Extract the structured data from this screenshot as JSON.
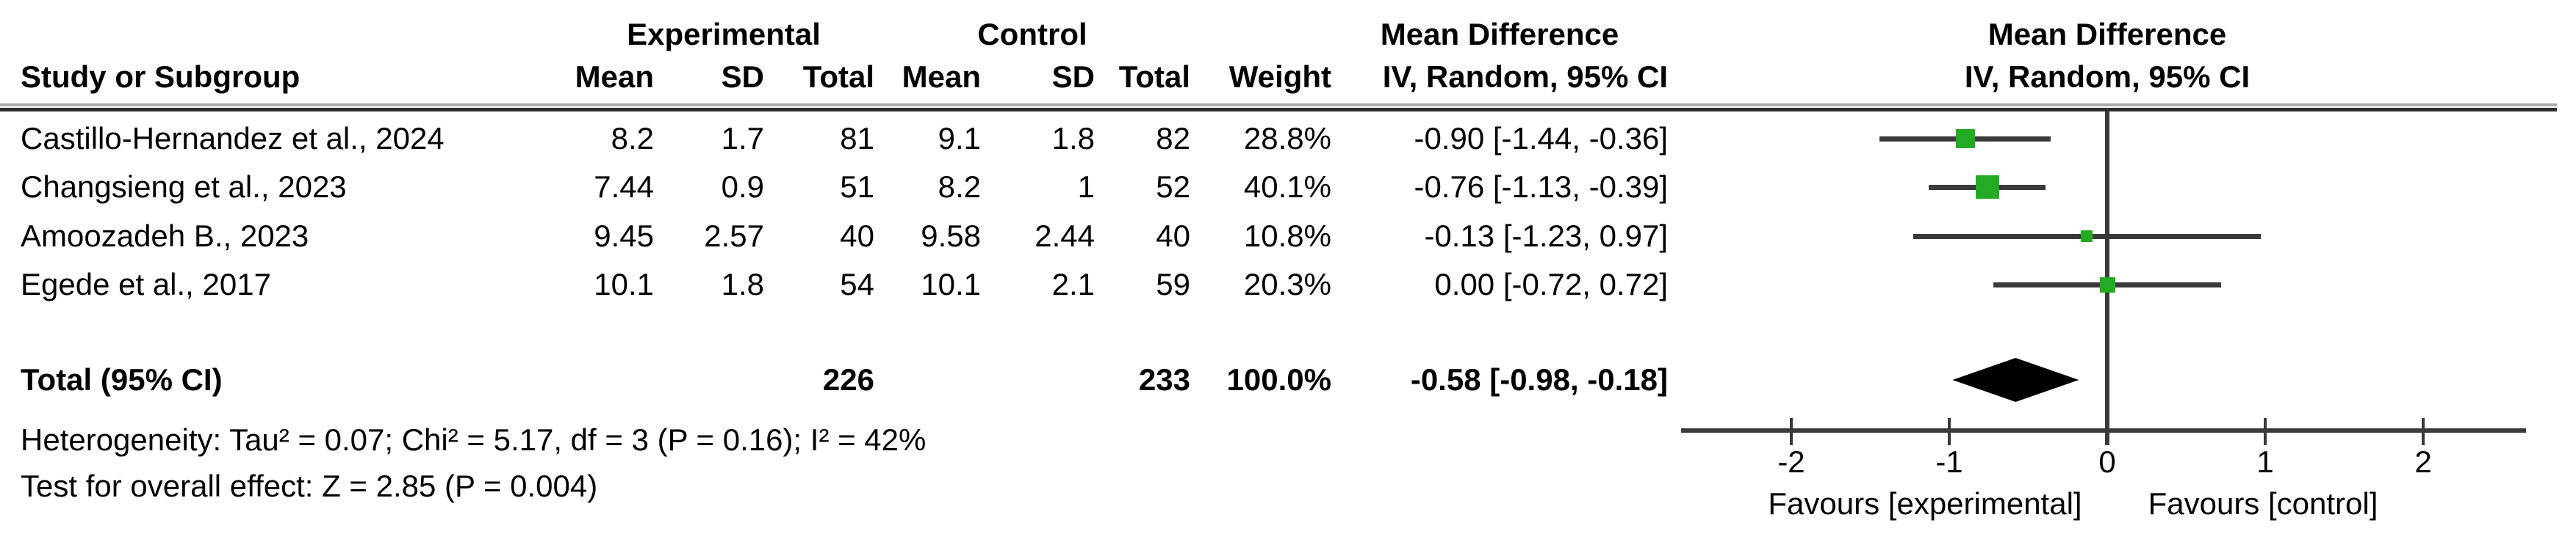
{
  "colors": {
    "marker_green": "#23AC23",
    "ci_line": "#3a3a3a",
    "axis_line": "#3a3a3a",
    "diamond": "#000000",
    "text": "#000000",
    "background": "#ffffff"
  },
  "table": {
    "group_headers": {
      "experimental": "Experimental",
      "control": "Control",
      "mean_difference": "Mean Difference"
    },
    "column_headers": {
      "study": "Study or Subgroup",
      "mean": "Mean",
      "sd": "SD",
      "total": "Total",
      "weight": "Weight",
      "iv": "IV, Random, 95% CI"
    }
  },
  "plot": {
    "header_line1": "Mean Difference",
    "header_line2": "IV, Random, 95% CI",
    "favours_left": "Favours [experimental]",
    "favours_right": "Favours [control]"
  },
  "chart_data": {
    "type": "forest",
    "effect_measure": "Mean Difference",
    "model": "IV, Random, 95% CI",
    "axis": {
      "min": -2,
      "max": 2,
      "tick_labels": [
        "-2",
        "-1",
        "0",
        "1",
        "2"
      ],
      "tick_values": [
        -2,
        -1,
        0,
        1,
        2
      ]
    },
    "studies": [
      {
        "name": "Castillo-Hernandez et al., 2024",
        "exp_mean": "8.2",
        "exp_sd": "1.7",
        "exp_total": "81",
        "ctl_mean": "9.1",
        "ctl_sd": "1.8",
        "ctl_total": "82",
        "weight": "28.8%",
        "weight_value": 28.8,
        "ci_text": "-0.90 [-1.44, -0.36]",
        "md": -0.9,
        "ci_low": -1.44,
        "ci_high": -0.36
      },
      {
        "name": "Changsieng et al., 2023",
        "exp_mean": "7.44",
        "exp_sd": "0.9",
        "exp_total": "51",
        "ctl_mean": "8.2",
        "ctl_sd": "1",
        "ctl_total": "52",
        "weight": "40.1%",
        "weight_value": 40.1,
        "ci_text": "-0.76 [-1.13, -0.39]",
        "md": -0.76,
        "ci_low": -1.13,
        "ci_high": -0.39
      },
      {
        "name": "Amoozadeh B., 2023",
        "exp_mean": "9.45",
        "exp_sd": "2.57",
        "exp_total": "40",
        "ctl_mean": "9.58",
        "ctl_sd": "2.44",
        "ctl_total": "40",
        "weight": "10.8%",
        "weight_value": 10.8,
        "ci_text": "-0.13 [-1.23, 0.97]",
        "md": -0.13,
        "ci_low": -1.23,
        "ci_high": 0.97
      },
      {
        "name": "Egede et al., 2017",
        "exp_mean": "10.1",
        "exp_sd": "1.8",
        "exp_total": "54",
        "ctl_mean": "10.1",
        "ctl_sd": "2.1",
        "ctl_total": "59",
        "weight": "20.3%",
        "weight_value": 20.3,
        "ci_text": "0.00 [-0.72, 0.72]",
        "md": 0.0,
        "ci_low": -0.72,
        "ci_high": 0.72
      }
    ],
    "overall": {
      "label": "Total (95% CI)",
      "exp_total": "226",
      "ctl_total": "233",
      "weight": "100.0%",
      "ci_text": "-0.58 [-0.98, -0.18]",
      "md": -0.58,
      "ci_low": -0.98,
      "ci_high": -0.18
    },
    "heterogeneity": "Heterogeneity: Tau² = 0.07; Chi² = 5.17, df = 3 (P = 0.16); I² = 42%",
    "overall_effect_test": "Test for overall effect: Z = 2.85 (P = 0.004)",
    "footer_labels": {
      "left": "Favours [experimental]",
      "right": "Favours [control]"
    }
  }
}
